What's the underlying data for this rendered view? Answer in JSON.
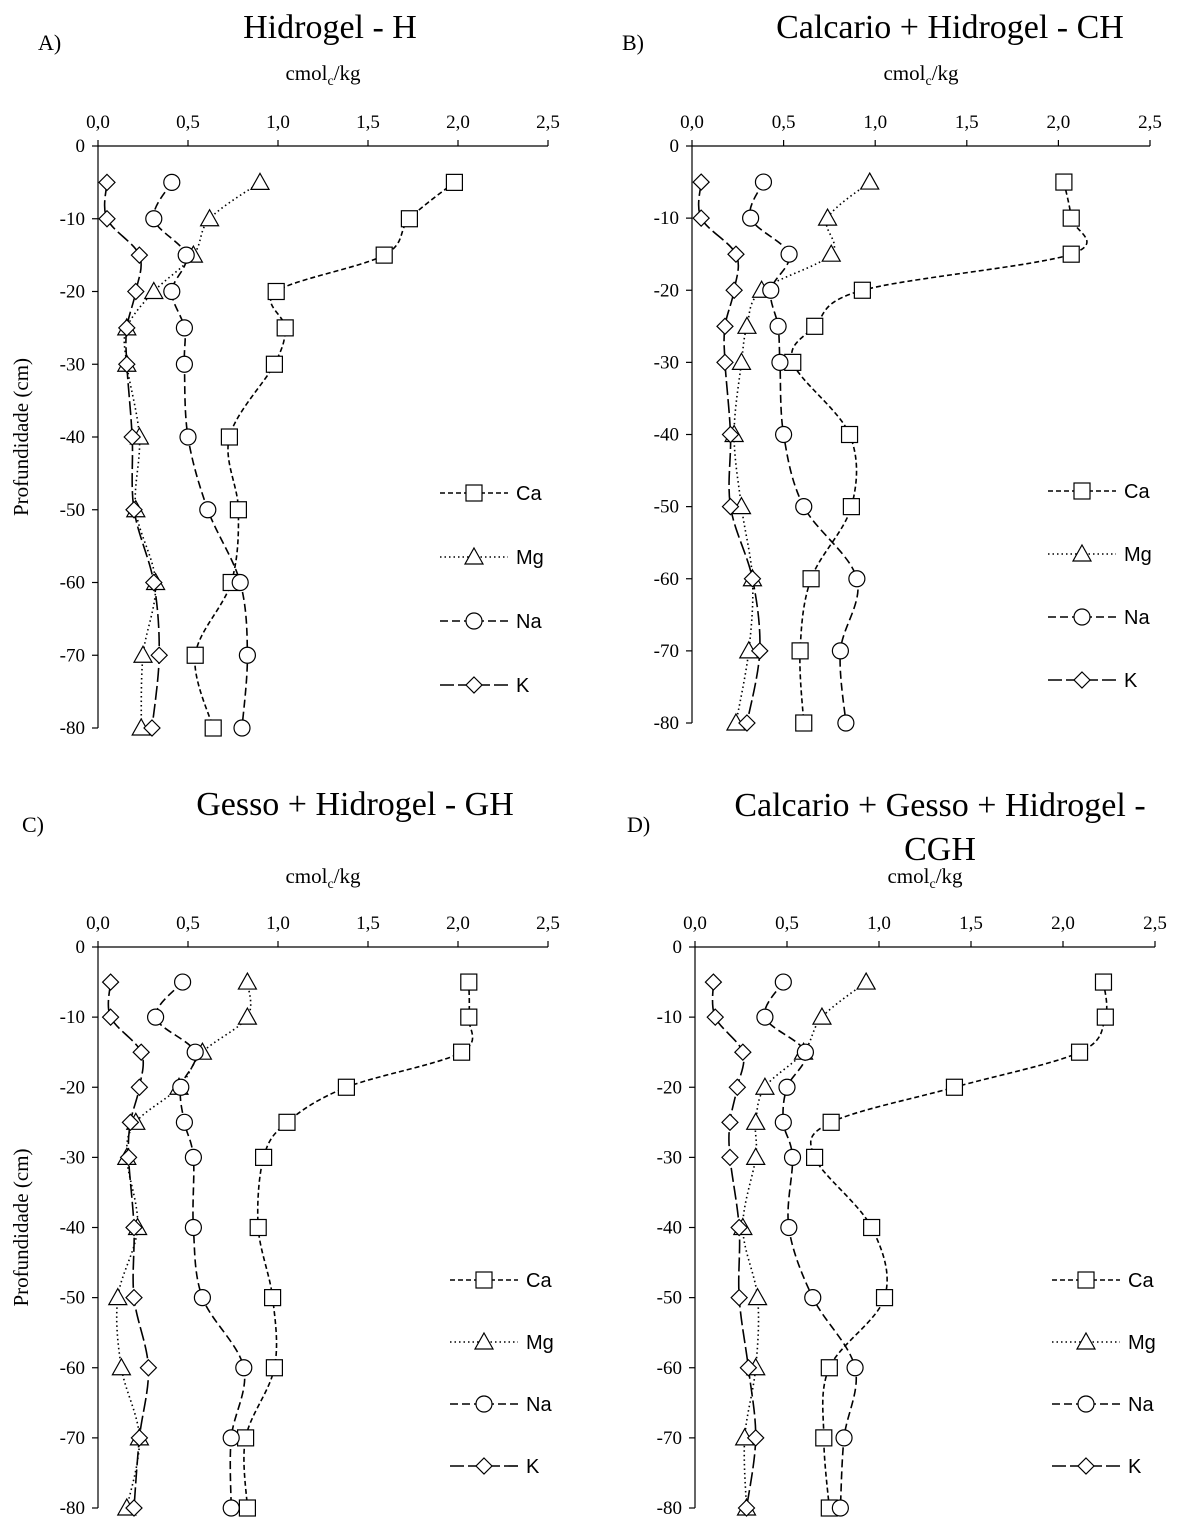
{
  "colors": {
    "ink": "#000000",
    "background": "#ffffff"
  },
  "chart_data": [
    {
      "type": "line",
      "panel_label": "A)",
      "title": "Hidrogel - H",
      "xlabel_main": "cmol",
      "xlabel_sub": "c",
      "xlabel_tail": "/kg",
      "ylabel": "Profundidade (cm)",
      "xlim": [
        0,
        2.5
      ],
      "ylim": [
        -80,
        0
      ],
      "xticks": [
        "0,0",
        "0,5",
        "1,0",
        "1,5",
        "2,0",
        "2,5"
      ],
      "yticks": [
        "0",
        "-10",
        "-20",
        "-30",
        "-40",
        "-50",
        "-60",
        "-70",
        "-80"
      ],
      "x_axis_position": "top",
      "legend_position": "right",
      "y": [
        -5,
        -10,
        -15,
        -20,
        -25,
        -30,
        -40,
        -50,
        -60,
        -70,
        -80
      ],
      "series": [
        {
          "name": "Ca",
          "marker": "square",
          "dash": "5 3",
          "values": [
            1.98,
            1.73,
            1.59,
            0.99,
            1.04,
            0.98,
            0.73,
            0.78,
            0.74,
            0.54,
            0.64
          ]
        },
        {
          "name": "Mg",
          "marker": "triangle",
          "dash": "1.5 3",
          "values": [
            0.9,
            0.62,
            0.53,
            0.31,
            0.16,
            0.16,
            0.23,
            0.21,
            0.32,
            0.25,
            0.24
          ]
        },
        {
          "name": "Na",
          "marker": "circle",
          "dash": "8 4",
          "values": [
            0.41,
            0.31,
            0.49,
            0.41,
            0.48,
            0.48,
            0.5,
            0.61,
            0.79,
            0.83,
            0.8
          ]
        },
        {
          "name": "K",
          "marker": "diamond",
          "dash": "14 4",
          "values": [
            0.05,
            0.05,
            0.23,
            0.21,
            0.16,
            0.16,
            0.19,
            0.2,
            0.31,
            0.34,
            0.3
          ]
        }
      ]
    },
    {
      "type": "line",
      "panel_label": "B)",
      "title": "Calcario + Hidrogel - CH",
      "xlabel_main": "cmol",
      "xlabel_sub": "c",
      "xlabel_tail": "/kg",
      "ylabel": "",
      "xlim": [
        0,
        2.5
      ],
      "ylim": [
        -80,
        0
      ],
      "xticks": [
        "0,0",
        "0,5",
        "1,0",
        "1,5",
        "2,0",
        "2,5"
      ],
      "yticks": [
        "0",
        "-10",
        "-20",
        "-30",
        "-40",
        "-50",
        "-60",
        "-70",
        "-80"
      ],
      "x_axis_position": "top",
      "legend_position": "right",
      "y": [
        -5,
        -10,
        -15,
        -20,
        -25,
        -30,
        -40,
        -50,
        -60,
        -70,
        -80
      ],
      "series": [
        {
          "name": "Ca",
          "marker": "square",
          "dash": "5 3",
          "values": [
            2.03,
            2.07,
            2.07,
            0.93,
            0.67,
            0.55,
            0.86,
            0.87,
            0.65,
            0.59,
            0.61
          ]
        },
        {
          "name": "Mg",
          "marker": "triangle",
          "dash": "1.5 3",
          "values": [
            0.97,
            0.74,
            0.76,
            0.38,
            0.3,
            0.27,
            0.23,
            0.27,
            0.33,
            0.31,
            0.24
          ]
        },
        {
          "name": "Na",
          "marker": "circle",
          "dash": "8 4",
          "values": [
            0.39,
            0.32,
            0.53,
            0.43,
            0.47,
            0.48,
            0.5,
            0.61,
            0.9,
            0.81,
            0.84
          ]
        },
        {
          "name": "K",
          "marker": "diamond",
          "dash": "14 4",
          "values": [
            0.05,
            0.05,
            0.24,
            0.23,
            0.18,
            0.18,
            0.21,
            0.21,
            0.33,
            0.37,
            0.3
          ]
        }
      ]
    },
    {
      "type": "line",
      "panel_label": "C)",
      "title": "Gesso + Hidrogel - GH",
      "xlabel_main": "cmol",
      "xlabel_sub": "c",
      "xlabel_tail": "/kg",
      "ylabel": "Profundidade (cm)",
      "xlim": [
        0,
        2.5
      ],
      "ylim": [
        -80,
        0
      ],
      "xticks": [
        "0,0",
        "0,5",
        "1,0",
        "1,5",
        "2,0",
        "2,5"
      ],
      "yticks": [
        "0",
        "-10",
        "-20",
        "-30",
        "-40",
        "-50",
        "-60",
        "-70",
        "-80"
      ],
      "x_axis_position": "top",
      "legend_position": "right",
      "y": [
        -5,
        -10,
        -15,
        -20,
        -25,
        -30,
        -40,
        -50,
        -60,
        -70,
        -80
      ],
      "series": [
        {
          "name": "Ca",
          "marker": "square",
          "dash": "5 3",
          "values": [
            2.06,
            2.06,
            2.02,
            1.38,
            1.05,
            0.92,
            0.89,
            0.97,
            0.98,
            0.82,
            0.83
          ]
        },
        {
          "name": "Mg",
          "marker": "triangle",
          "dash": "1.5 3",
          "values": [
            0.83,
            0.83,
            0.58,
            0.45,
            0.21,
            0.16,
            0.22,
            0.11,
            0.13,
            0.23,
            0.16
          ]
        },
        {
          "name": "Na",
          "marker": "circle",
          "dash": "8 4",
          "values": [
            0.47,
            0.32,
            0.54,
            0.46,
            0.48,
            0.53,
            0.53,
            0.58,
            0.81,
            0.74,
            0.74
          ]
        },
        {
          "name": "K",
          "marker": "diamond",
          "dash": "14 4",
          "values": [
            0.07,
            0.07,
            0.24,
            0.23,
            0.18,
            0.17,
            0.2,
            0.2,
            0.28,
            0.23,
            0.2
          ]
        }
      ]
    },
    {
      "type": "line",
      "panel_label": "D)",
      "title": "Calcario + Gesso + Hidrogel - CGH",
      "xlabel_main": "cmol",
      "xlabel_sub": "c",
      "xlabel_tail": "/kg",
      "ylabel": "",
      "xlim": [
        0,
        2.5
      ],
      "ylim": [
        -80,
        0
      ],
      "xticks": [
        "0,0",
        "0,5",
        "1,0",
        "1,5",
        "2,0",
        "2,5"
      ],
      "yticks": [
        "0",
        "-10",
        "-20",
        "-30",
        "-40",
        "-50",
        "-60",
        "-70",
        "-80"
      ],
      "x_axis_position": "top",
      "legend_position": "right",
      "y": [
        -5,
        -10,
        -15,
        -20,
        -25,
        -30,
        -40,
        -50,
        -60,
        -70,
        -80
      ],
      "series": [
        {
          "name": "Ca",
          "marker": "square",
          "dash": "5 3",
          "values": [
            2.22,
            2.23,
            2.09,
            1.41,
            0.74,
            0.65,
            0.96,
            1.03,
            0.73,
            0.7,
            0.73
          ]
        },
        {
          "name": "Mg",
          "marker": "triangle",
          "dash": "1.5 3",
          "values": [
            0.93,
            0.69,
            0.59,
            0.38,
            0.33,
            0.33,
            0.26,
            0.34,
            0.33,
            0.27,
            0.28
          ]
        },
        {
          "name": "Na",
          "marker": "circle",
          "dash": "8 4",
          "values": [
            0.48,
            0.38,
            0.6,
            0.5,
            0.48,
            0.53,
            0.51,
            0.64,
            0.87,
            0.81,
            0.79
          ]
        },
        {
          "name": "K",
          "marker": "diamond",
          "dash": "14 4",
          "values": [
            0.1,
            0.11,
            0.26,
            0.23,
            0.19,
            0.19,
            0.24,
            0.24,
            0.29,
            0.33,
            0.28
          ]
        }
      ]
    }
  ]
}
